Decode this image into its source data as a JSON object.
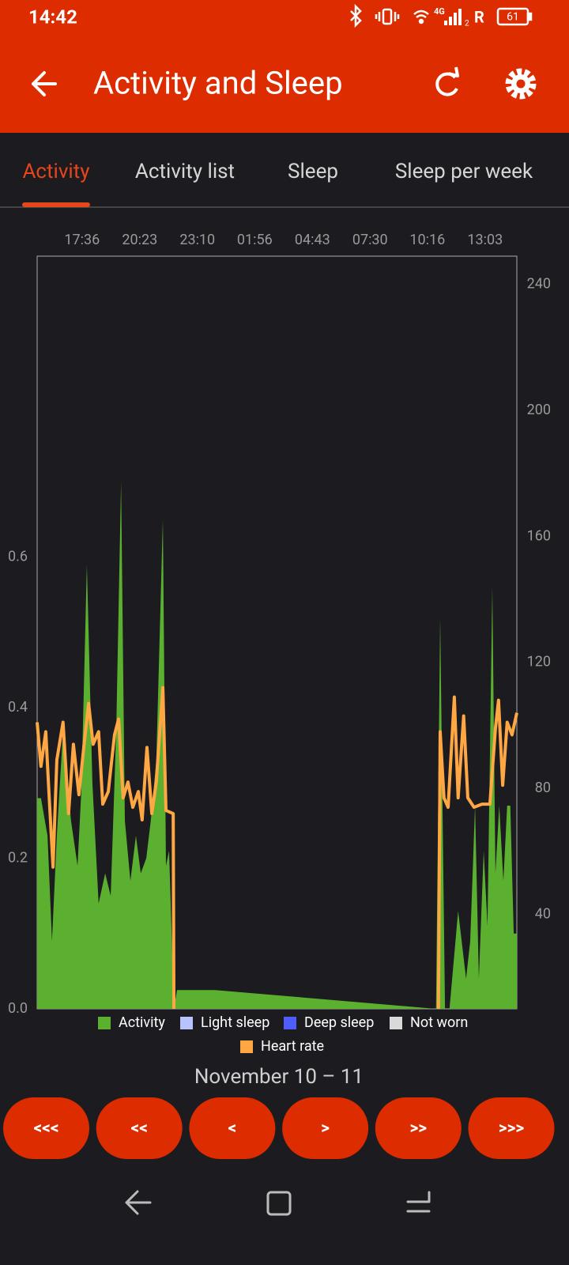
{
  "status_bar": {
    "time": "14:42",
    "network": "4G",
    "sim": "2",
    "carrier": "R",
    "battery": "61"
  },
  "app_bar": {
    "title": "Activity and Sleep"
  },
  "tabs": [
    "Activity",
    "Activity list",
    "Sleep",
    "Sleep per week"
  ],
  "chart_data": {
    "type": "area",
    "xlim": [
      "15:26",
      "14:35"
    ],
    "xticks": [
      "17:36",
      "20:23",
      "23:10",
      "01:56",
      "04:43",
      "07:30",
      "10:16",
      "13:03"
    ],
    "ylim": [
      0,
      1.0
    ],
    "yticks": [
      {
        "value": 0,
        "label": "0.0"
      },
      0.2,
      0.4,
      0.6
    ],
    "y2lim": [
      10,
      249
    ],
    "y2ticks": [
      40,
      80,
      120,
      160,
      200,
      240
    ],
    "series": [
      {
        "name": "Activity",
        "type": "area",
        "color": "#5bb12f",
        "x": [
          "15:26",
          "15:37",
          "15:56",
          "16:09",
          "16:23",
          "16:41",
          "17:04",
          "17:23",
          "17:34",
          "17:50",
          "18:06",
          "18:24",
          "18:43",
          "18:59",
          "19:15",
          "19:29",
          "19:40",
          "19:56",
          "20:12",
          "20:26",
          "20:42",
          "20:55",
          "21:11",
          "21:30",
          "21:39",
          "21:48",
          "22:02",
          "22:11",
          "00:01",
          "10:41",
          "10:53",
          "11:07",
          "11:20",
          "11:45",
          "12:08",
          "12:20",
          "12:34",
          "12:45",
          "12:59",
          "13:10",
          "13:24",
          "13:33",
          "13:44",
          "13:56",
          "14:07",
          "14:16",
          "14:26",
          "14:35"
        ],
        "values": [
          0.28,
          0.28,
          0.23,
          0.09,
          0.23,
          0.37,
          0.25,
          0.19,
          0.29,
          0.59,
          0.3,
          0.14,
          0.18,
          0.15,
          0.37,
          0.7,
          0.25,
          0.17,
          0.23,
          0.18,
          0.2,
          0.25,
          0.33,
          0.65,
          0.19,
          0.21,
          0,
          0.025,
          0.025,
          0,
          0.52,
          0,
          0,
          0.13,
          0.04,
          0.09,
          0.27,
          0.04,
          0.21,
          0.11,
          0.56,
          0.18,
          0.27,
          0.17,
          0.27,
          0.27,
          0.1,
          0.1
        ]
      },
      {
        "name": "Light sleep",
        "type": "area",
        "color": "#b9c2ff",
        "x": [],
        "values": []
      },
      {
        "name": "Deep sleep",
        "type": "area",
        "color": "#4f5dff",
        "x": [],
        "values": []
      },
      {
        "name": "Not worn",
        "type": "area",
        "color": "#d9d9d9",
        "x": [],
        "values": []
      },
      {
        "name": "Heart rate",
        "type": "line",
        "axis": "y2",
        "color": "#ffa743",
        "x": [
          "15:26",
          "15:37",
          "15:51",
          "16:00",
          "16:12",
          "16:23",
          "16:41",
          "16:57",
          "17:11",
          "17:27",
          "17:41",
          "17:55",
          "18:08",
          "18:24",
          "18:36",
          "18:52",
          "19:10",
          "19:22",
          "19:35",
          "19:49",
          "20:03",
          "20:19",
          "20:30",
          "20:44",
          "20:58",
          "21:11",
          "21:30",
          "21:39",
          "22:00",
          "22:02",
          "04:00",
          "10:48",
          "10:53",
          "11:04",
          "11:16",
          "11:34",
          "11:45",
          "12:01",
          "12:13",
          "12:31",
          "12:54",
          "13:17",
          "13:33",
          "13:42",
          "13:54",
          "14:07",
          "14:21",
          "14:35"
        ],
        "values": [
          101,
          87,
          98,
          79,
          55,
          89,
          101,
          72,
          94,
          78,
          93,
          107,
          94,
          98,
          75,
          79,
          97,
          102,
          77,
          82,
          74,
          79,
          70,
          93,
          72,
          82,
          112,
          73,
          72,
          10,
          null,
          10,
          98,
          77,
          74,
          109,
          77,
          103,
          77,
          74,
          75,
          75,
          99,
          108,
          81,
          101,
          97,
          104
        ]
      }
    ]
  },
  "date_range": "November 10 – 11",
  "nav_buttons": [
    "<<<",
    "<<",
    "<",
    ">",
    ">>",
    ">>>"
  ]
}
